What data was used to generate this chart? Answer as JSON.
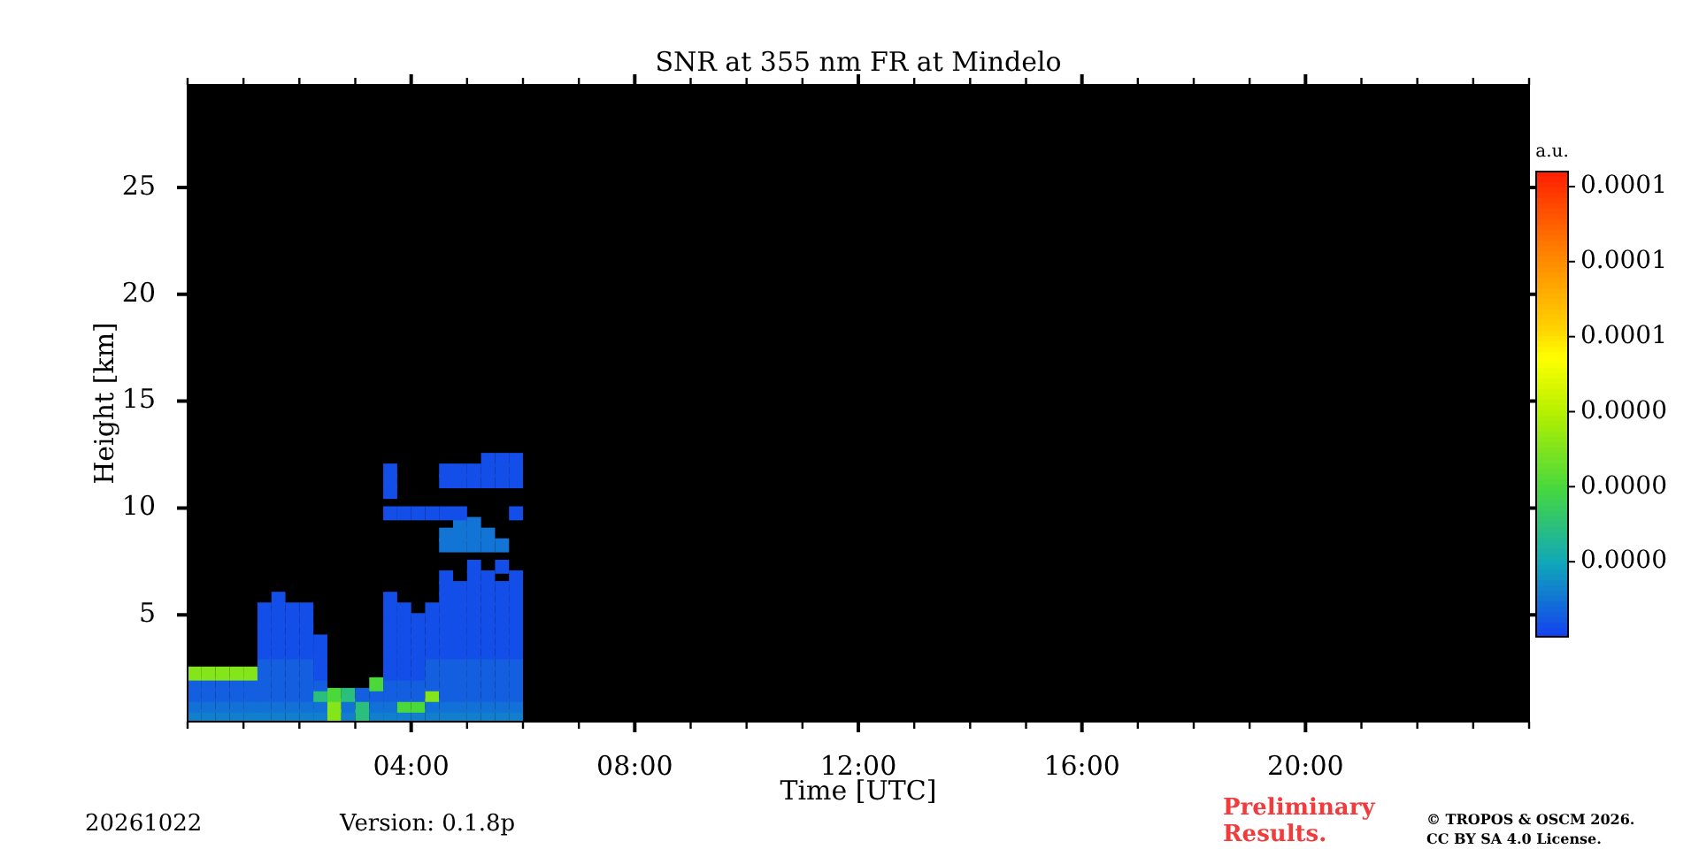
{
  "chart_data": {
    "type": "scatter",
    "title": "SNR at 355 nm FR at Mindelo",
    "xlabel": "Time [UTC]",
    "ylabel": "Height [km]",
    "clabel": "a.u.",
    "marker": "square",
    "annotations": [
      "20261022",
      "Version: 0.1.8p",
      "Preliminary\nResults.",
      "© TROPOS & OSCM 2026.\nCC BY SA 4.0 License."
    ],
    "xlim": [
      0,
      24
    ],
    "xticks": [
      {
        "value": 0,
        "label": null
      },
      {
        "value": 1,
        "label": null
      },
      {
        "value": 2,
        "label": null
      },
      {
        "value": 3,
        "label": null
      },
      {
        "value": 4,
        "label": "04:00"
      },
      {
        "value": 5,
        "label": null
      },
      {
        "value": 6,
        "label": null
      },
      {
        "value": 7,
        "label": null
      },
      {
        "value": 8,
        "label": "08:00"
      },
      {
        "value": 9,
        "label": null
      },
      {
        "value": 10,
        "label": null
      },
      {
        "value": 11,
        "label": null
      },
      {
        "value": 12,
        "label": "12:00"
      },
      {
        "value": 13,
        "label": null
      },
      {
        "value": 14,
        "label": null
      },
      {
        "value": 15,
        "label": null
      },
      {
        "value": 16,
        "label": "16:00"
      },
      {
        "value": 17,
        "label": null
      },
      {
        "value": 18,
        "label": null
      },
      {
        "value": 19,
        "label": null
      },
      {
        "value": 20,
        "label": "20:00"
      },
      {
        "value": 21,
        "label": null
      },
      {
        "value": 22,
        "label": null
      },
      {
        "value": 23,
        "label": null
      },
      {
        "value": 24,
        "label": null
      }
    ],
    "ylim": [
      0,
      29.8
    ],
    "yticks": [
      5,
      10,
      15,
      20,
      25
    ],
    "clim": [
      0,
      9.3e-05
    ],
    "cticks": [
      {
        "value": 1.5e-05,
        "label": "0.0000"
      },
      {
        "value": 3e-05,
        "label": "0.0000"
      },
      {
        "value": 4.5e-05,
        "label": "0.0000"
      },
      {
        "value": 6e-05,
        "label": "0.0001"
      },
      {
        "value": 7.5e-05,
        "label": "0.0001"
      },
      {
        "value": 9e-05,
        "label": "0.0001"
      }
    ],
    "x": [
      0.125,
      0.375,
      0.625,
      0.875,
      1.125,
      1.375,
      1.625,
      1.875,
      2.125,
      2.375,
      2.625,
      2.875,
      3.125,
      3.375,
      3.625,
      3.875,
      4.125,
      4.375,
      4.625,
      4.875,
      5.125,
      5.375,
      5.625,
      5.875,
      0.125,
      0.375,
      0.625,
      0.875,
      1.125,
      1.375,
      1.625,
      1.875,
      2.125,
      2.375,
      2.625,
      2.875,
      3.125,
      3.375,
      3.625,
      3.875,
      4.125,
      4.375,
      4.625,
      4.875,
      5.125,
      5.375,
      5.625,
      5.875,
      0.125,
      0.375,
      0.625,
      0.875,
      1.125,
      1.375,
      1.625,
      1.875,
      2.125,
      2.375,
      2.625,
      2.875,
      3.125,
      3.375,
      3.625,
      3.875,
      4.125,
      4.375,
      4.625,
      4.875,
      5.125,
      5.375,
      5.625,
      5.875,
      0.125,
      0.375,
      0.625,
      0.875,
      1.125,
      1.375,
      1.625,
      1.875,
      2.125,
      2.375,
      3.375,
      3.625,
      3.875,
      4.125,
      4.375,
      4.625,
      4.875,
      5.125,
      5.375,
      5.625,
      5.875,
      0.125,
      0.375,
      0.625,
      0.875,
      1.125,
      1.375,
      1.625,
      1.875,
      2.125,
      2.375,
      3.625,
      3.875,
      4.125,
      4.375,
      4.625,
      4.875,
      5.125,
      5.375,
      5.625,
      5.875,
      1.375,
      1.625,
      1.875,
      2.125,
      2.375,
      3.625,
      3.875,
      4.125,
      4.375,
      4.625,
      4.875,
      5.125,
      5.375,
      5.625,
      5.875,
      1.375,
      1.625,
      1.875,
      2.125,
      2.375,
      3.625,
      3.875,
      4.125,
      4.375,
      4.625,
      4.875,
      5.125,
      5.375,
      5.625,
      5.875,
      1.375,
      1.625,
      1.875,
      2.125,
      2.375,
      3.625,
      3.875,
      4.125,
      4.375,
      4.625,
      4.875,
      5.125,
      5.375,
      5.625,
      5.875,
      1.375,
      1.625,
      1.875,
      2.125,
      3.625,
      3.875,
      4.125,
      4.375,
      4.625,
      4.875,
      5.125,
      5.375,
      5.625,
      5.875,
      1.375,
      1.625,
      1.875,
      2.125,
      3.625,
      3.875,
      4.125,
      4.375,
      4.625,
      4.875,
      5.125,
      5.375,
      5.625,
      5.875,
      1.375,
      1.625,
      1.875,
      2.125,
      3.625,
      3.875,
      4.375,
      4.625,
      4.875,
      5.125,
      5.375,
      5.625,
      5.875,
      1.625,
      3.625,
      4.625,
      4.875,
      5.125,
      5.375,
      5.625,
      5.875,
      4.625,
      4.875,
      5.125,
      5.375,
      5.625,
      5.875,
      4.625,
      5.125,
      5.375,
      5.875,
      5.125,
      5.625,
      4.625,
      4.875,
      5.125,
      5.375,
      5.625,
      4.625,
      4.875,
      5.125,
      5.375,
      4.875,
      5.125,
      3.625,
      3.875,
      4.125,
      4.375,
      4.625,
      4.875,
      5.875,
      3.625,
      3.625,
      4.625,
      4.875,
      5.125,
      5.375,
      5.625,
      5.875,
      3.625,
      4.625,
      4.875,
      5.125,
      5.375,
      5.625,
      5.875,
      5.375,
      5.625,
      5.875
    ],
    "values": [
      0.25,
      0.25,
      0.25,
      0.25,
      0.25,
      0.25,
      0.25,
      0.25,
      0.25,
      0.25,
      0.25,
      0.25,
      0.25,
      0.25,
      0.25,
      0.25,
      0.25,
      0.25,
      0.25,
      0.25,
      0.25,
      0.25,
      0.25,
      0.25,
      0.75,
      0.75,
      0.75,
      0.75,
      0.75,
      0.75,
      0.75,
      0.75,
      0.75,
      0.75,
      0.75,
      0.75,
      0.75,
      0.75,
      0.75,
      0.75,
      0.75,
      0.75,
      0.75,
      0.75,
      0.75,
      0.75,
      0.75,
      0.75,
      1.25,
      1.25,
      1.25,
      1.25,
      1.25,
      1.25,
      1.25,
      1.25,
      1.25,
      1.25,
      1.25,
      1.25,
      1.25,
      1.25,
      1.25,
      1.25,
      1.25,
      1.25,
      1.25,
      1.25,
      1.25,
      1.25,
      1.25,
      1.25,
      1.75,
      1.75,
      1.75,
      1.75,
      1.75,
      1.75,
      1.75,
      1.75,
      1.75,
      1.75,
      1.75,
      1.75,
      1.75,
      1.75,
      1.75,
      1.75,
      1.75,
      1.75,
      1.75,
      1.75,
      1.75,
      2.25,
      2.25,
      2.25,
      2.25,
      2.25,
      2.25,
      2.25,
      2.25,
      2.25,
      2.25,
      2.25,
      2.25,
      2.25,
      2.25,
      2.25,
      2.25,
      2.25,
      2.25,
      2.25,
      2.25,
      2.75,
      2.75,
      2.75,
      2.75,
      2.75,
      2.75,
      2.75,
      2.75,
      2.75,
      2.75,
      2.75,
      2.75,
      2.75,
      2.75,
      2.75,
      3.25,
      3.25,
      3.25,
      3.25,
      3.25,
      3.25,
      3.25,
      3.25,
      3.25,
      3.25,
      3.25,
      3.25,
      3.25,
      3.25,
      3.25,
      3.75,
      3.75,
      3.75,
      3.75,
      3.75,
      3.75,
      3.75,
      3.75,
      3.75,
      3.75,
      3.75,
      3.75,
      3.75,
      3.75,
      3.75,
      4.25,
      4.25,
      4.25,
      4.25,
      4.25,
      4.25,
      4.25,
      4.25,
      4.25,
      4.25,
      4.25,
      4.25,
      4.25,
      4.25,
      4.75,
      4.75,
      4.75,
      4.75,
      4.75,
      4.75,
      4.75,
      4.75,
      4.75,
      4.75,
      4.75,
      4.75,
      4.75,
      4.75,
      5.25,
      5.25,
      5.25,
      5.25,
      5.25,
      5.25,
      5.25,
      5.25,
      5.25,
      5.25,
      5.25,
      5.25,
      5.25,
      5.75,
      5.75,
      5.75,
      5.75,
      5.75,
      5.75,
      5.75,
      5.75,
      6.25,
      6.25,
      6.25,
      6.25,
      6.25,
      6.25,
      6.75,
      6.75,
      6.75,
      6.75,
      7.25,
      7.25,
      8.25,
      8.25,
      8.25,
      8.25,
      8.25,
      8.75,
      8.75,
      8.75,
      8.75,
      9.25,
      9.25,
      9.75,
      9.75,
      9.75,
      9.75,
      9.75,
      9.75,
      9.75,
      10.75,
      11.25,
      11.25,
      11.25,
      11.25,
      11.25,
      11.25,
      11.25,
      11.75,
      11.75,
      11.75,
      11.75,
      11.75,
      11.75,
      11.75,
      12.25,
      12.25,
      12.25
    ],
    "cvalues": [
      9e-06,
      9e-06,
      9e-06,
      9e-06,
      9e-06,
      9e-06,
      9e-06,
      9e-06,
      9e-06,
      9e-06,
      3.8e-05,
      9e-06,
      2.2e-05,
      9e-06,
      9e-06,
      9e-06,
      9e-06,
      9e-06,
      9e-06,
      9e-06,
      9e-06,
      9e-06,
      9e-06,
      9e-06,
      7e-06,
      7e-06,
      7e-06,
      7e-06,
      7e-06,
      7e-06,
      7e-06,
      7e-06,
      7e-06,
      7e-06,
      3.8e-05,
      7e-06,
      2.2e-05,
      7e-06,
      7e-06,
      3e-05,
      3e-05,
      7e-06,
      7e-06,
      7e-06,
      7e-06,
      7e-06,
      7e-06,
      7e-06,
      4.5e-06,
      4.5e-06,
      4.5e-06,
      4.5e-06,
      4.5e-06,
      4.5e-06,
      4.5e-06,
      4.5e-06,
      4.5e-06,
      2.2e-05,
      3e-05,
      2.2e-05,
      4.5e-06,
      4.5e-06,
      4.5e-06,
      4.5e-06,
      4.5e-06,
      3.8e-05,
      4.5e-06,
      4.5e-06,
      4.5e-06,
      4.5e-06,
      4.5e-06,
      4.5e-06,
      4.5e-06,
      4.5e-06,
      4.5e-06,
      4.5e-06,
      4.5e-06,
      4.5e-06,
      4.5e-06,
      4.5e-06,
      4.5e-06,
      4.5e-06,
      3e-05,
      4.5e-06,
      4.5e-06,
      4.5e-06,
      4.5e-06,
      4.5e-06,
      4.5e-06,
      4.5e-06,
      4.5e-06,
      4.5e-06,
      4.5e-06,
      3.8e-05,
      3.8e-05,
      3.8e-05,
      3.8e-05,
      3.8e-05,
      4.5e-06,
      4.5e-06,
      4.5e-06,
      4.5e-06,
      2e-06,
      2e-06,
      2e-06,
      2e-06,
      4.5e-06,
      4.5e-06,
      4.5e-06,
      4.5e-06,
      4.5e-06,
      4.5e-06,
      4.5e-06,
      4.5e-06,
      4.5e-06,
      4.5e-06,
      4.5e-06,
      2e-06,
      2e-06,
      2e-06,
      2e-06,
      4.5e-06,
      4.5e-06,
      4.5e-06,
      4.5e-06,
      4.5e-06,
      4.5e-06,
      4.5e-06,
      2e-06,
      2e-06,
      2e-06,
      2e-06,
      2e-06,
      2e-06,
      2e-06,
      2e-06,
      2e-06,
      2e-06,
      2e-06,
      2e-06,
      2e-06,
      2e-06,
      2e-06,
      2e-06,
      2e-06,
      2e-06,
      2e-06,
      2e-06,
      2e-06,
      2e-06,
      2e-06,
      2e-06,
      2e-06,
      2e-06,
      2e-06,
      2e-06,
      2e-06,
      2e-06,
      2e-06,
      2e-06,
      2e-06,
      2e-06,
      2e-06,
      2e-06,
      2e-06,
      2e-06,
      2e-06,
      2e-06,
      2e-06,
      2e-06,
      2e-06,
      2e-06,
      2e-06,
      2e-06,
      2e-06,
      2e-06,
      2e-06,
      2e-06,
      2e-06,
      2e-06,
      2e-06,
      2e-06,
      2e-06,
      2e-06,
      2e-06,
      2e-06,
      2e-06,
      2e-06,
      2e-06,
      2e-06,
      2e-06,
      2e-06,
      2e-06,
      2e-06,
      2e-06,
      2e-06,
      2e-06,
      2e-06,
      2e-06,
      2e-06,
      2e-06,
      2e-06,
      2e-06,
      2e-06,
      2e-06,
      2e-06,
      2e-06,
      2e-06,
      2e-06,
      2e-06,
      2e-06,
      2e-06,
      2e-06,
      2e-06,
      2e-06,
      2e-06,
      2e-06,
      2e-06,
      2e-06,
      7.5e-06,
      7.5e-06,
      7.5e-06,
      7.5e-06,
      7.5e-06,
      7.5e-06,
      7.5e-06,
      7.5e-06,
      7.5e-06,
      7.5e-06,
      7.5e-06,
      2e-06,
      2e-06,
      2e-06,
      2e-06,
      2e-06,
      2e-06,
      2e-06,
      2e-06,
      2e-06,
      2e-06,
      2e-06,
      2e-06,
      2e-06,
      2e-06,
      2e-06,
      2e-06,
      2e-06,
      2e-06,
      2e-06,
      2e-06,
      2e-06,
      2e-06,
      2e-06,
      2e-06,
      2e-06
    ]
  }
}
